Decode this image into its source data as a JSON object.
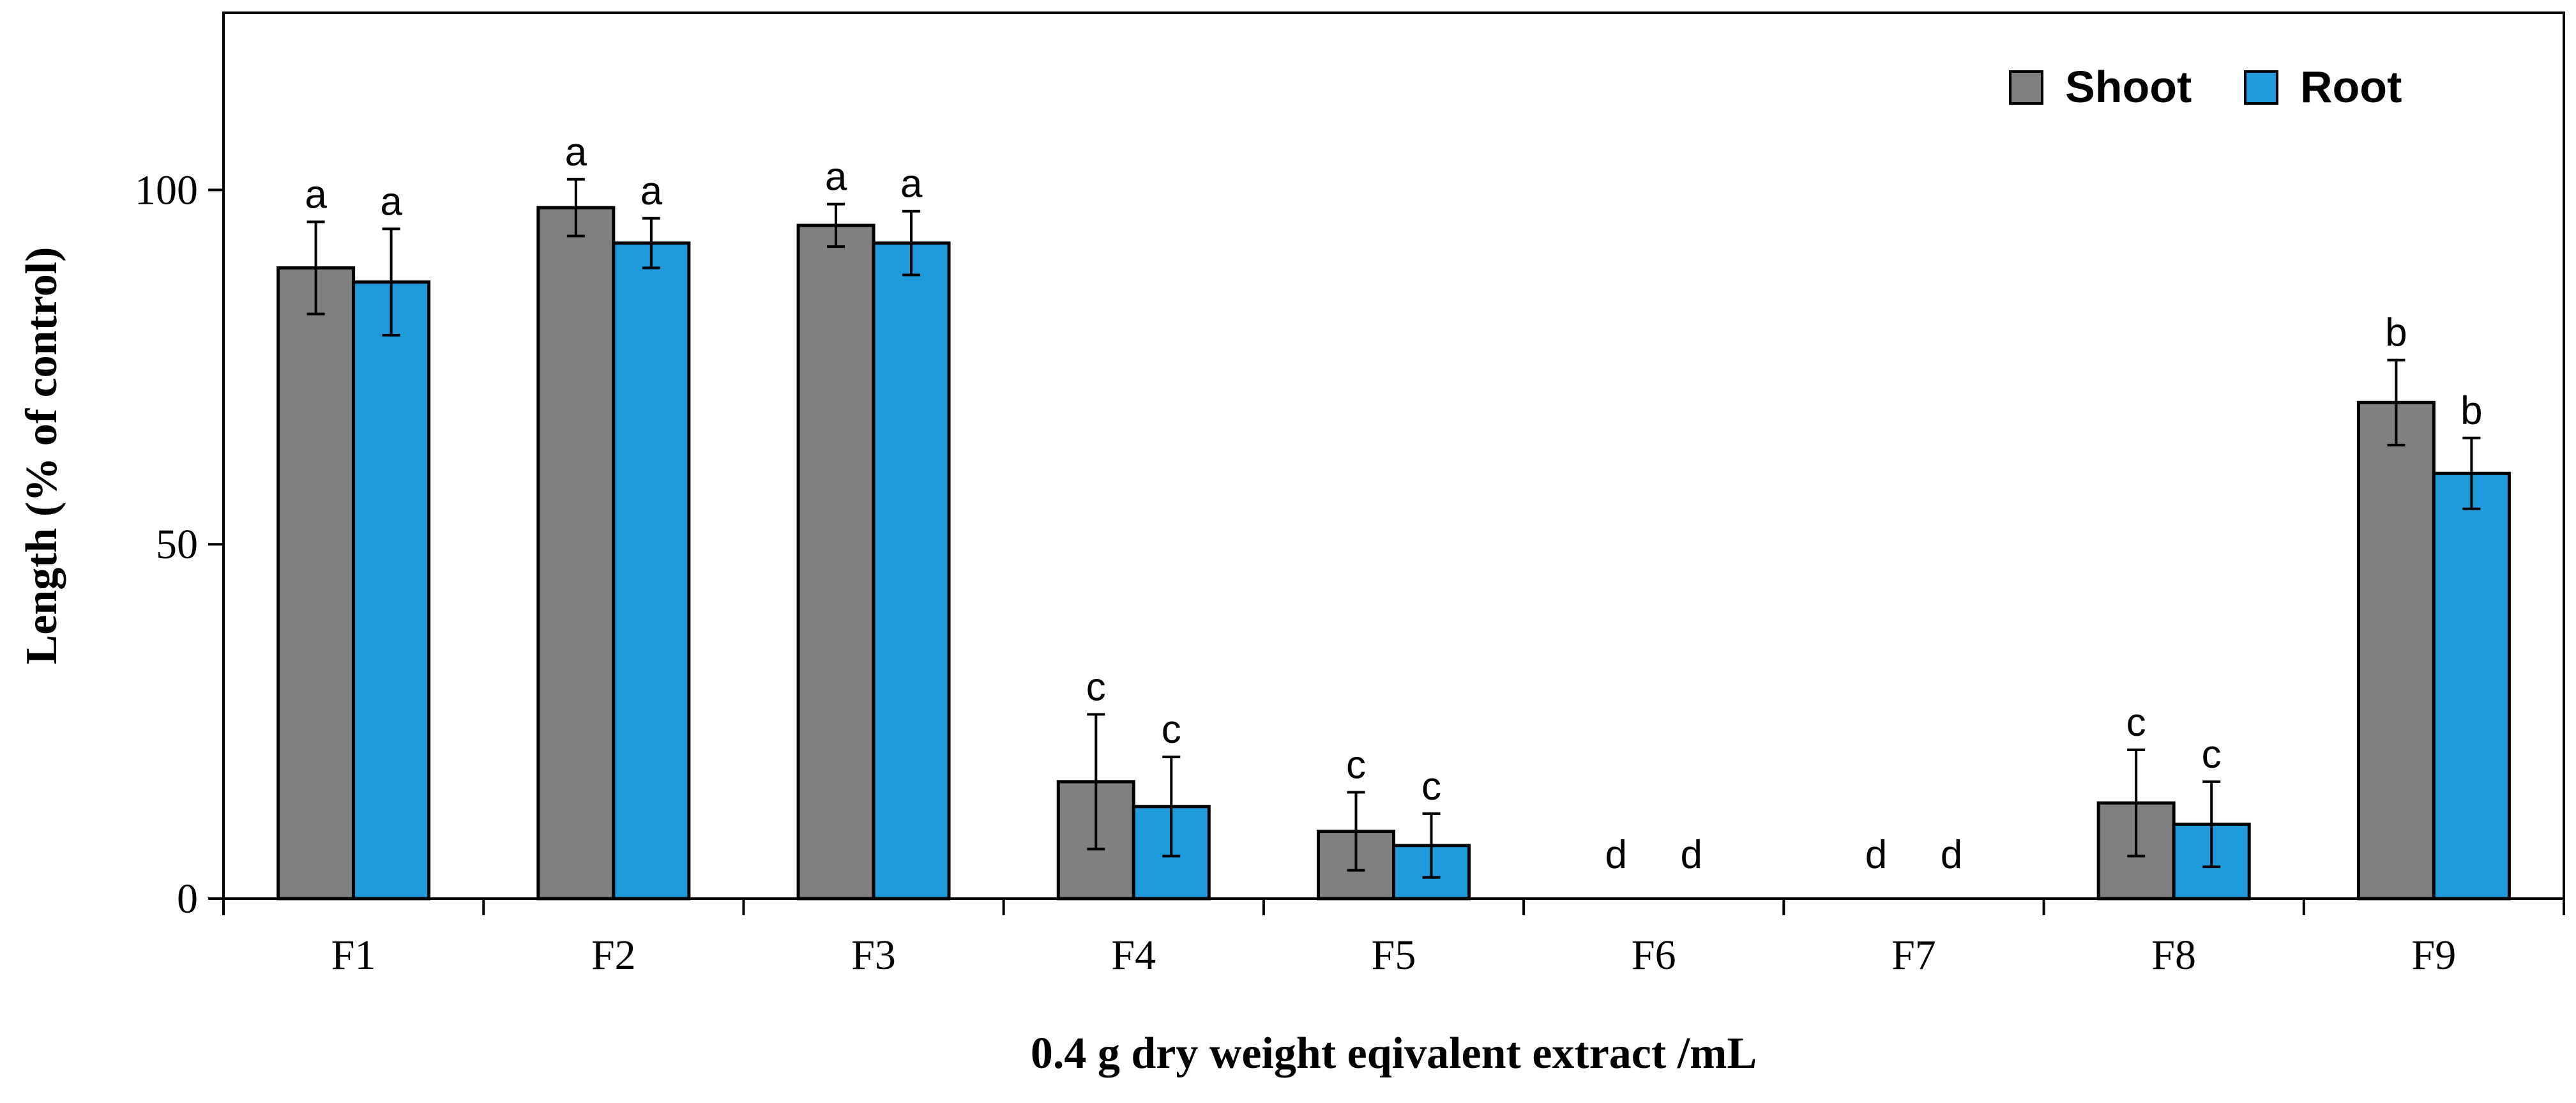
{
  "chart_data": {
    "type": "bar",
    "title": "",
    "xlabel": "0.4 g dry weight eqivalent extract /mL",
    "ylabel": "Length (% of control)",
    "ylim": [
      0,
      125
    ],
    "yticks": [
      0,
      50,
      100
    ],
    "ytick_labels": [
      "0",
      "50",
      "100"
    ],
    "grid": false,
    "legend_position": "top-right",
    "categories": [
      "F1",
      "F2",
      "F3",
      "F4",
      "F5",
      "F6",
      "F7",
      "F8",
      "F9"
    ],
    "series": [
      {
        "name": "Shoot",
        "color": "#808080",
        "values": [
          89,
          97.5,
          95,
          16.5,
          9.5,
          0,
          0,
          13.5,
          70
        ],
        "errors": [
          6.5,
          4,
          3,
          9.5,
          5.5,
          0,
          0,
          7.5,
          6
        ],
        "labels": [
          "a",
          "a",
          "a",
          "c",
          "c",
          "d",
          "d",
          "c",
          "b"
        ]
      },
      {
        "name": "Root",
        "color": "#1f9bdc",
        "values": [
          87,
          92.5,
          92.5,
          13,
          7.5,
          0,
          0,
          10.5,
          60
        ],
        "errors": [
          7.5,
          3.5,
          4.5,
          7,
          4.5,
          0,
          0,
          6,
          5
        ],
        "labels": [
          "a",
          "a",
          "a",
          "c",
          "c",
          "d",
          "d",
          "c",
          "b"
        ]
      }
    ]
  }
}
